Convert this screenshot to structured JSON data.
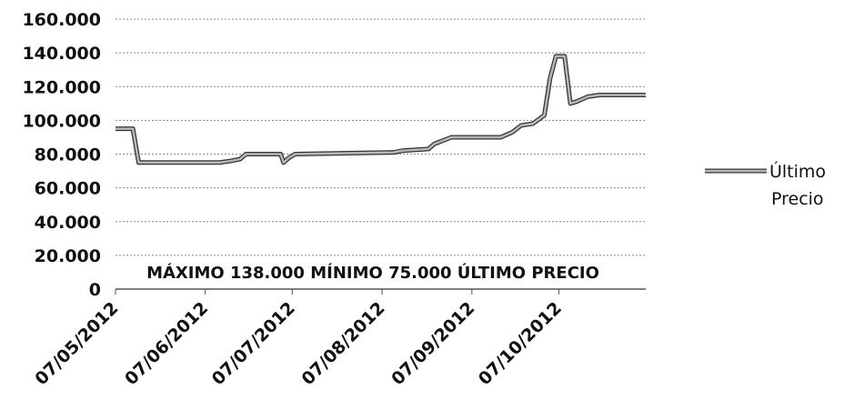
{
  "chart_data": {
    "type": "line",
    "annotation": "MÁXIMO 138.000 MÍNIMO 75.000 ÚLTIMO PRECIO",
    "x": [
      "07/05/2012",
      "13/05/2012",
      "15/05/2012",
      "12/06/2012",
      "16/06/2012",
      "19/06/2012",
      "21/06/2012",
      "03/07/2012",
      "04/07/2012",
      "06/07/2012",
      "08/07/2012",
      "11/08/2012",
      "14/08/2012",
      "23/08/2012",
      "25/08/2012",
      "28/08/2012",
      "31/08/2012",
      "17/09/2012",
      "21/09/2012",
      "24/09/2012",
      "28/09/2012",
      "02/10/2012",
      "04/10/2012",
      "06/10/2012",
      "09/10/2012",
      "11/10/2012",
      "13/10/2012",
      "17/10/2012",
      "21/10/2012",
      "06/11/2012"
    ],
    "series": [
      {
        "name": "Último Precio",
        "color": "#b8b8b8",
        "values": [
          95000,
          95000,
          75000,
          75000,
          76000,
          77000,
          80000,
          80000,
          75000,
          78000,
          80000,
          81000,
          82000,
          83000,
          86000,
          88000,
          90000,
          90000,
          93000,
          97000,
          98000,
          103000,
          125000,
          138000,
          138000,
          110000,
          111000,
          114000,
          115000,
          115000
        ]
      }
    ],
    "xlim": [
      "07/05/2012",
      "06/11/2012"
    ],
    "xticks": [
      "07/05/2012",
      "07/06/2012",
      "07/07/2012",
      "07/08/2012",
      "07/09/2012",
      "07/10/2012"
    ],
    "ylim": [
      0,
      160000
    ],
    "yticks": [
      0,
      {
        "value": 20000,
        "label": "20.000"
      },
      {
        "value": 40000,
        "label": "40.000"
      },
      {
        "value": 60000,
        "label": "60.000"
      },
      {
        "value": 80000,
        "label": "80.000"
      },
      {
        "value": 100000,
        "label": "100.000"
      },
      {
        "value": 120000,
        "label": "120.000"
      },
      {
        "value": 140000,
        "label": "140.000"
      },
      {
        "value": 160000,
        "label": "160.000"
      }
    ],
    "grid": true,
    "legend": "right"
  }
}
